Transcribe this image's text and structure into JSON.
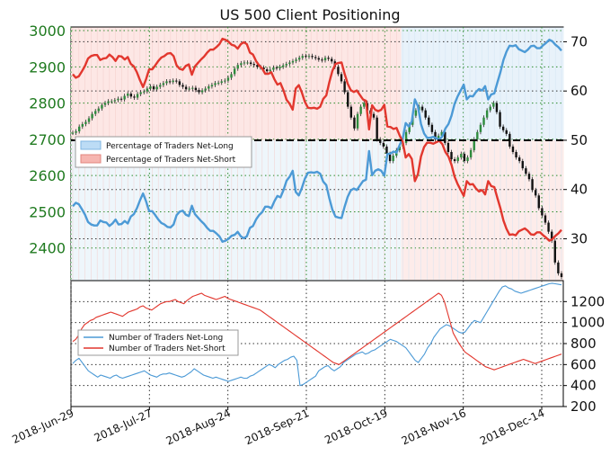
{
  "chart_data": [
    {
      "type": "line",
      "title": "US 500 Client Positioning",
      "x_tick_labels": [
        "2018-Jun-29",
        "2018-Jul-27",
        "2018-Aug-24",
        "2018-Sep-21",
        "2018-Oct-19",
        "2018-Nov-16",
        "2018-Dec-14"
      ],
      "y_left_ticks": [
        2400,
        2500,
        2600,
        2700,
        2800,
        2900,
        3000
      ],
      "y_left_range": [
        2310,
        3010
      ],
      "y_right_ticks": [
        30,
        40,
        50,
        60,
        70
      ],
      "y_right_range": [
        21.5,
        73
      ],
      "reference_line": 50,
      "legend": [
        "Percentage of Traders Net-Long",
        "Percentage of Traders Net-Short"
      ],
      "legend_placement": "center-left",
      "price_close": [
        2718,
        2722,
        2735,
        2742,
        2748,
        2758,
        2770,
        2778,
        2785,
        2795,
        2800,
        2805,
        2805,
        2808,
        2812,
        2810,
        2820,
        2826,
        2818,
        2815,
        2825,
        2830,
        2832,
        2840,
        2846,
        2838,
        2845,
        2850,
        2855,
        2860,
        2858,
        2862,
        2860,
        2850,
        2845,
        2838,
        2840,
        2842,
        2836,
        2830,
        2835,
        2840,
        2846,
        2850,
        2855,
        2856,
        2860,
        2862,
        2870,
        2880,
        2895,
        2905,
        2910,
        2912,
        2912,
        2908,
        2905,
        2900,
        2898,
        2893,
        2888,
        2892,
        2898,
        2896,
        2900,
        2904,
        2908,
        2912,
        2916,
        2920,
        2925,
        2930,
        2928,
        2930,
        2927,
        2924,
        2920,
        2918,
        2925,
        2922,
        2915,
        2900,
        2880,
        2860,
        2830,
        2790,
        2760,
        2730,
        2770,
        2790,
        2800,
        2780,
        2770,
        2760,
        2700,
        2690,
        2680,
        2660,
        2640,
        2655,
        2670,
        2680,
        2690,
        2720,
        2740,
        2765,
        2780,
        2790,
        2780,
        2760,
        2740,
        2720,
        2700,
        2710,
        2720,
        2690,
        2665,
        2645,
        2640,
        2650,
        2660,
        2640,
        2650,
        2670,
        2700,
        2720,
        2740,
        2760,
        2780,
        2790,
        2800,
        2775,
        2735,
        2725,
        2715,
        2680,
        2665,
        2650,
        2640,
        2620,
        2605,
        2590,
        2560,
        2545,
        2510,
        2490,
        2470,
        2445,
        2420,
        2360,
        2330,
        2320
      ],
      "series": [
        {
          "name": "Percentage of Traders Net-Long",
          "color": "#4c9ad6",
          "values": [
            36.6,
            37.3,
            37.0,
            36.0,
            34.9,
            33.4,
            32.9,
            32.7,
            32.7,
            33.7,
            33.4,
            33.3,
            32.6,
            33.1,
            33.9,
            32.9,
            33.0,
            33.6,
            33.1,
            34.5,
            35.0,
            36.2,
            37.8,
            39.2,
            37.6,
            35.6,
            35.6,
            34.8,
            33.9,
            33.2,
            32.9,
            32.4,
            32.3,
            32.9,
            34.8,
            35.5,
            35.7,
            34.9,
            34.6,
            36.7,
            35.0,
            34.3,
            33.6,
            33.0,
            32.2,
            31.6,
            31.6,
            31.1,
            30.5,
            29.4,
            29.6,
            30.0,
            30.6,
            30.8,
            31.4,
            30.5,
            30.1,
            30.5,
            32.2,
            32.6,
            33.9,
            34.8,
            35.4,
            36.5,
            36.5,
            36.2,
            37.6,
            38.7,
            38.4,
            39.9,
            41.8,
            42.6,
            43.8,
            39.5,
            38.8,
            40.3,
            42.2,
            43.4,
            43.5,
            43.4,
            43.6,
            43.2,
            41.6,
            40.9,
            38.2,
            35.9,
            34.5,
            34.3,
            34.2,
            36.5,
            38.5,
            39.8,
            40.2,
            39.9,
            40.8,
            41.7,
            42.0,
            47.8,
            42.9,
            43.8,
            44.1,
            43.8,
            42.8,
            47.2,
            47.3,
            47.7,
            47.5,
            49.0,
            50.3,
            53.5,
            52.8,
            53.8,
            58.3,
            56.9,
            53.3,
            51.4,
            50.5,
            50.5,
            50.7,
            50.4,
            50.1,
            50.8,
            52.4,
            53.3,
            55.0,
            57.4,
            58.9,
            60.1,
            61.3,
            58.3,
            59.0,
            58.9,
            59.8,
            60.4,
            60.1,
            61.0,
            58.3,
            59.3,
            59.5,
            61.7,
            63.8,
            66.3,
            68.0,
            69.2,
            69.1,
            69.3,
            68.5,
            68.2,
            67.9,
            68.4,
            69.1,
            69.2,
            68.7,
            68.7,
            69.3,
            69.8,
            70.4,
            70.1,
            69.4,
            68.9,
            68.2
          ]
        },
        {
          "name": "Percentage of Traders Net-Short",
          "color": "#e2372e",
          "values": [
            63.4,
            62.7,
            63.0,
            64.0,
            65.1,
            66.6,
            67.1,
            67.3,
            67.3,
            66.3,
            66.6,
            66.7,
            67.4,
            66.9,
            66.1,
            67.1,
            67.0,
            66.4,
            66.9,
            65.5,
            65.0,
            63.8,
            62.2,
            60.8,
            62.4,
            64.4,
            64.4,
            65.2,
            66.1,
            66.8,
            67.1,
            67.6,
            67.7,
            67.1,
            65.2,
            64.5,
            64.3,
            65.1,
            65.4,
            63.3,
            65.0,
            65.7,
            66.4,
            67.0,
            67.8,
            68.4,
            68.4,
            68.9,
            69.5,
            70.6,
            70.4,
            70.0,
            69.4,
            69.2,
            68.6,
            69.5,
            69.9,
            69.5,
            67.8,
            67.4,
            66.1,
            65.2,
            64.6,
            63.5,
            63.5,
            63.8,
            62.4,
            61.3,
            61.6,
            60.1,
            58.2,
            57.4,
            56.2,
            60.5,
            61.2,
            59.7,
            57.8,
            56.6,
            56.5,
            56.6,
            56.4,
            56.8,
            58.4,
            59.1,
            61.8,
            64.1,
            65.5,
            65.7,
            65.8,
            63.5,
            61.5,
            60.2,
            59.8,
            60.1,
            59.2,
            58.3,
            58.0,
            52.2,
            57.1,
            56.2,
            55.9,
            56.2,
            57.2,
            52.8,
            52.7,
            52.3,
            52.5,
            51.0,
            49.7,
            46.5,
            47.2,
            46.2,
            41.7,
            43.1,
            46.7,
            48.6,
            49.5,
            49.5,
            49.3,
            49.6,
            49.9,
            49.2,
            47.6,
            46.7,
            45.0,
            42.6,
            41.1,
            39.9,
            38.7,
            41.7,
            41.0,
            41.1,
            40.2,
            39.6,
            39.9,
            39.0,
            41.7,
            40.7,
            40.5,
            38.3,
            36.2,
            33.7,
            32.0,
            30.8,
            30.9,
            30.7,
            31.5,
            31.8,
            32.1,
            31.6,
            30.9,
            30.8,
            31.3,
            31.3,
            30.7,
            30.2,
            29.6,
            29.9,
            30.6,
            31.1,
            31.8
          ]
        }
      ]
    },
    {
      "type": "line",
      "x_tick_labels": [
        "2018-Jun-29",
        "2018-Jul-27",
        "2018-Aug-24",
        "2018-Sep-21",
        "2018-Oct-19",
        "2018-Nov-16",
        "2018-Dec-14"
      ],
      "y_right_ticks": [
        200,
        400,
        600,
        800,
        1000,
        1200
      ],
      "y_range": [
        200,
        1400
      ],
      "legend": [
        "Number of Traders Net-Long",
        "Number of Traders Net-Short"
      ],
      "legend_placement": "center-left",
      "series": [
        {
          "name": "Number of Traders Net-Long",
          "color": "#4c9ad6",
          "values": [
            610,
            640,
            660,
            620,
            580,
            540,
            520,
            500,
            480,
            500,
            490,
            480,
            470,
            490,
            500,
            480,
            470,
            480,
            490,
            500,
            510,
            520,
            530,
            540,
            520,
            500,
            490,
            480,
            500,
            510,
            510,
            520,
            510,
            500,
            490,
            480,
            490,
            510,
            530,
            560,
            540,
            520,
            500,
            490,
            480,
            470,
            480,
            470,
            460,
            450,
            440,
            450,
            460,
            470,
            480,
            470,
            470,
            490,
            500,
            520,
            540,
            560,
            580,
            600,
            590,
            570,
            600,
            620,
            640,
            650,
            670,
            680,
            640,
            400,
            410,
            430,
            450,
            470,
            490,
            540,
            560,
            580,
            590,
            560,
            540,
            560,
            580,
            620,
            640,
            660,
            680,
            700,
            710,
            720,
            700,
            710,
            730,
            740,
            760,
            780,
            800,
            820,
            840,
            830,
            820,
            800,
            780,
            760,
            720,
            680,
            640,
            620,
            660,
            700,
            760,
            800,
            860,
            900,
            940,
            960,
            980,
            970,
            950,
            930,
            910,
            900,
            910,
            950,
            990,
            1020,
            1010,
            1000,
            1050,
            1100,
            1150,
            1200,
            1250,
            1300,
            1340,
            1350,
            1330,
            1320,
            1300,
            1290,
            1280,
            1290,
            1300,
            1310,
            1320,
            1330,
            1340,
            1350,
            1360,
            1370,
            1375,
            1370,
            1365,
            1360
          ]
        },
        {
          "name": "Number of Traders Net-Short",
          "color": "#e2372e",
          "values": [
            820,
            840,
            880,
            940,
            980,
            1000,
            1020,
            1030,
            1050,
            1060,
            1070,
            1080,
            1090,
            1100,
            1090,
            1080,
            1070,
            1060,
            1080,
            1100,
            1110,
            1120,
            1130,
            1150,
            1160,
            1140,
            1130,
            1120,
            1140,
            1160,
            1180,
            1190,
            1200,
            1200,
            1210,
            1220,
            1200,
            1190,
            1180,
            1210,
            1230,
            1250,
            1260,
            1270,
            1280,
            1260,
            1250,
            1240,
            1230,
            1220,
            1230,
            1240,
            1250,
            1230,
            1220,
            1210,
            1200,
            1190,
            1180,
            1170,
            1160,
            1150,
            1140,
            1130,
            1120,
            1100,
            1080,
            1060,
            1040,
            1020,
            1000,
            980,
            960,
            940,
            920,
            900,
            880,
            860,
            840,
            820,
            800,
            780,
            760,
            740,
            720,
            700,
            680,
            660,
            640,
            620,
            610,
            600,
            620,
            640,
            660,
            680,
            700,
            720,
            740,
            760,
            780,
            800,
            820,
            840,
            860,
            880,
            900,
            920,
            940,
            960,
            980,
            1000,
            1020,
            1040,
            1060,
            1080,
            1100,
            1120,
            1140,
            1160,
            1180,
            1200,
            1220,
            1240,
            1260,
            1280,
            1260,
            1200,
            1100,
            1000,
            900,
            850,
            800,
            760,
            720,
            700,
            680,
            660,
            640,
            620,
            600,
            580,
            570,
            560,
            550,
            560,
            570,
            580,
            590,
            600,
            610,
            620,
            630,
            640,
            650,
            640,
            630,
            620,
            610,
            620,
            630,
            640,
            650,
            660,
            670,
            680,
            690,
            700
          ]
        }
      ]
    }
  ]
}
